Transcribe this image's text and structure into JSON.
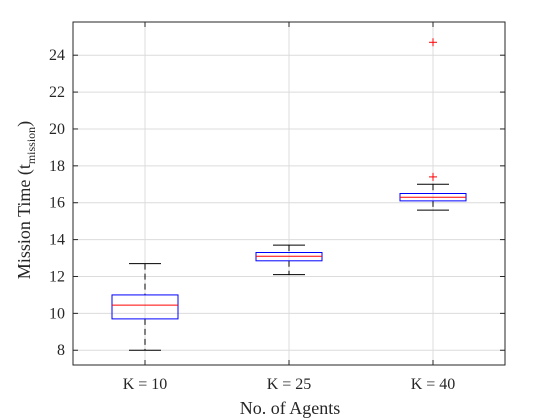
{
  "chart_data": {
    "type": "box",
    "title": "",
    "xlabel": "No. of Agents",
    "ylabel": {
      "main": "Mission Time (t",
      "subscript": "mission",
      "close": ")"
    },
    "ylim": [
      7.2,
      25.8
    ],
    "yticks": [
      8,
      10,
      12,
      14,
      16,
      18,
      20,
      22,
      24
    ],
    "grid": true,
    "colors": {
      "box": "#0000ff",
      "median": "#ff0000",
      "whisker": "#000000",
      "outlier": "#ff0000",
      "grid": "#dcdcdc",
      "axis": "#262626"
    },
    "categories": [
      "K = 10",
      "K = 25",
      "K = 40"
    ],
    "boxes": [
      {
        "label": "K = 10",
        "whisker_low": 8.0,
        "q1": 9.7,
        "median": 10.45,
        "q3": 11.0,
        "whisker_high": 12.7,
        "outliers": []
      },
      {
        "label": "K = 25",
        "whisker_low": 12.1,
        "q1": 12.85,
        "median": 13.1,
        "q3": 13.3,
        "whisker_high": 13.7,
        "outliers": []
      },
      {
        "label": "K = 40",
        "whisker_low": 15.6,
        "q1": 16.1,
        "median": 16.3,
        "q3": 16.5,
        "whisker_high": 17.0,
        "outliers": [
          17.4,
          24.7
        ]
      }
    ]
  }
}
